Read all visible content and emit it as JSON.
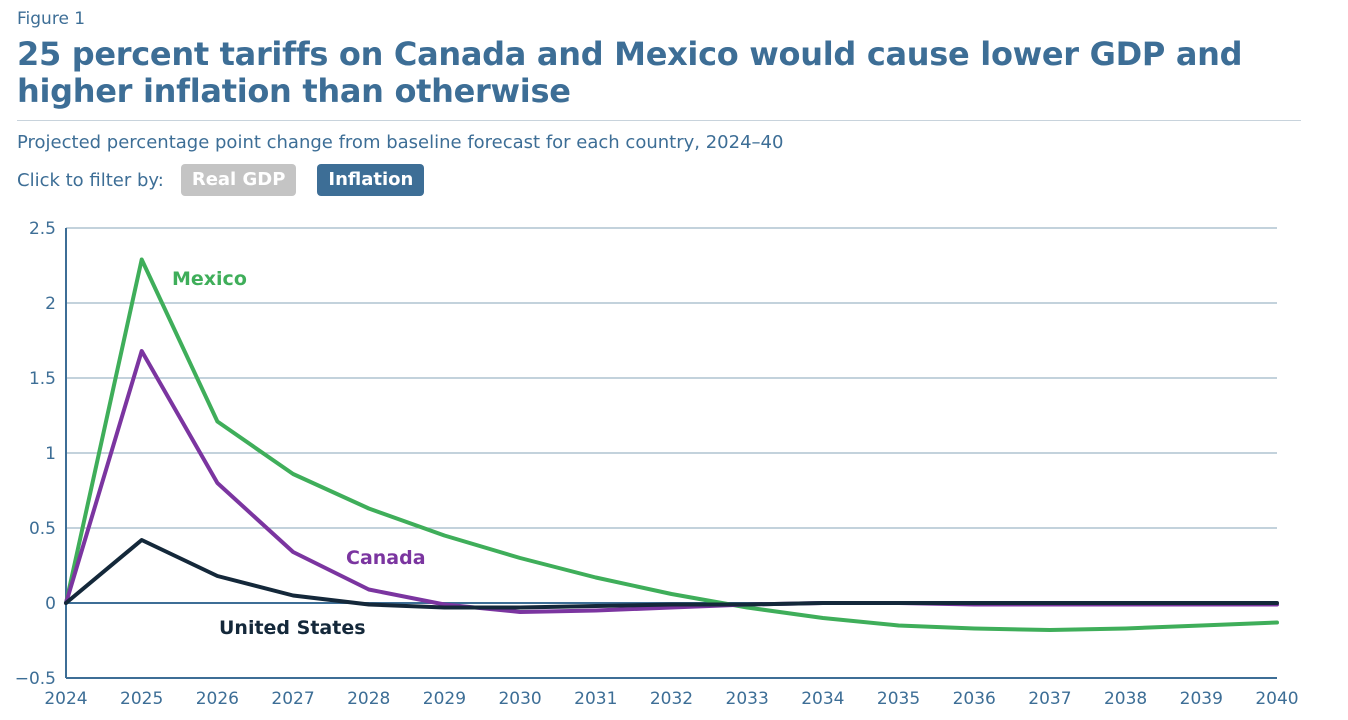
{
  "figure_label": "Figure 1",
  "title": "25 percent tariffs on Canada and Mexico would cause lower GDP and higher inflation than otherwise",
  "subtitle": "Projected percentage point change from baseline forecast for each country, 2024–40",
  "filter": {
    "label": "Click to filter by:",
    "options": [
      {
        "label": "Real GDP",
        "active": false
      },
      {
        "label": "Inflation",
        "active": true
      }
    ]
  },
  "colors": {
    "accent": "#3d6e96",
    "mexico": "#3fae5a",
    "canada": "#7b35a0",
    "united_states": "#14283a",
    "gridline": "#9fb6c8",
    "inactive_button": "#c4c4c4"
  },
  "chart_data": {
    "type": "line",
    "title": "25 percent tariffs on Canada and Mexico would cause lower GDP and higher inflation than otherwise",
    "xlabel": "",
    "ylabel": "",
    "x": [
      2024,
      2025,
      2026,
      2027,
      2028,
      2029,
      2030,
      2031,
      2032,
      2033,
      2034,
      2035,
      2036,
      2037,
      2038,
      2039,
      2040
    ],
    "ylim": [
      -0.5,
      2.5
    ],
    "yticks": [
      "2.5",
      "2",
      "1.5",
      "1",
      "0.5",
      "0",
      "−0.5"
    ],
    "ytick_values": [
      2.5,
      2,
      1.5,
      1,
      0.5,
      0,
      -0.5
    ],
    "xticks": [
      "2024",
      "2025",
      "2026",
      "2027",
      "2028",
      "2029",
      "2030",
      "2031",
      "2032",
      "2033",
      "2034",
      "2035",
      "2036",
      "2037",
      "2038",
      "2039",
      "2040"
    ],
    "grid": true,
    "legend": "inline labels",
    "series": [
      {
        "name": "Mexico",
        "color": "#3fae5a",
        "values": [
          0,
          2.29,
          1.21,
          0.86,
          0.63,
          0.45,
          0.3,
          0.17,
          0.06,
          -0.03,
          -0.1,
          -0.15,
          -0.17,
          -0.18,
          -0.17,
          -0.15,
          -0.13
        ]
      },
      {
        "name": "Canada",
        "color": "#7b35a0",
        "values": [
          0,
          1.68,
          0.8,
          0.34,
          0.09,
          -0.01,
          -0.06,
          -0.05,
          -0.03,
          -0.01,
          0.0,
          0.0,
          -0.01,
          -0.01,
          -0.01,
          -0.01,
          -0.01
        ]
      },
      {
        "name": "United States",
        "color": "#14283a",
        "values": [
          0,
          0.42,
          0.18,
          0.05,
          -0.01,
          -0.03,
          -0.03,
          -0.02,
          -0.01,
          -0.01,
          0.0,
          0.0,
          0.0,
          0.0,
          0.0,
          0.0,
          0.0
        ]
      }
    ]
  }
}
